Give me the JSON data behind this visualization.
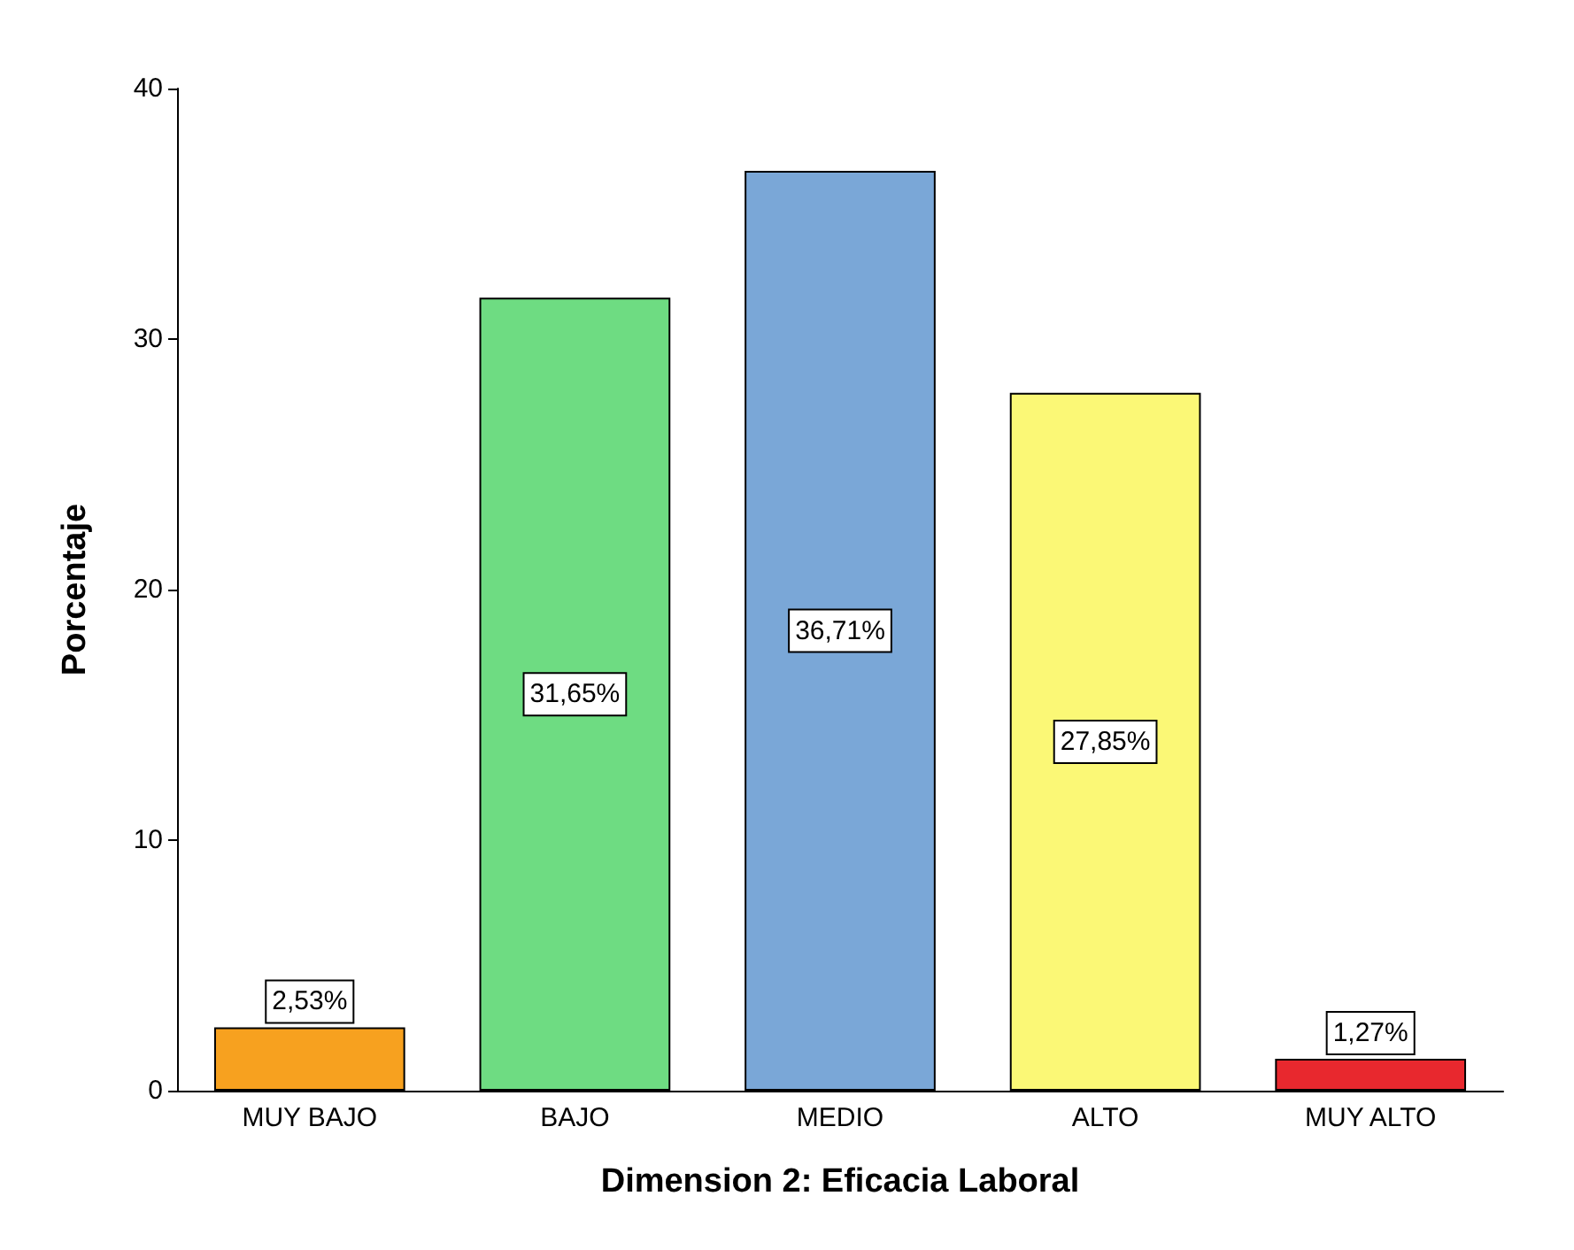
{
  "chart_data": {
    "type": "bar",
    "xlabel": "Dimension 2: Eficacia Laboral",
    "ylabel": "Porcentaje",
    "categories": [
      "MUY BAJO",
      "BAJO",
      "MEDIO",
      "ALTO",
      "MUY ALTO"
    ],
    "values": [
      2.53,
      31.65,
      36.71,
      27.85,
      1.27
    ],
    "value_labels": [
      "2,53%",
      "31,65%",
      "36,71%",
      "27,85%",
      "1,27%"
    ],
    "colors": [
      "#f7a11f",
      "#6edc82",
      "#7aa7d7",
      "#fbf876",
      "#e8282e"
    ],
    "ylim": [
      0,
      40
    ],
    "yticks": [
      0,
      10,
      20,
      30,
      40
    ],
    "grid": false
  }
}
